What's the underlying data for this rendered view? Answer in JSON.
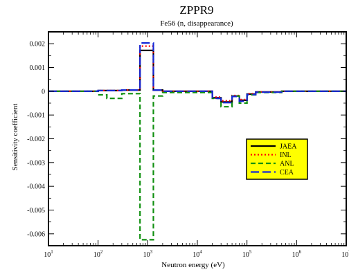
{
  "chart_data": {
    "type": "line",
    "title": "ZPPR9",
    "subtitle": "Fe56 (n, disappearance)",
    "xlabel": "Neutron energy (eV)",
    "ylabel": "Sensitivity coefficient",
    "x_scale": "log",
    "xlim": [
      10,
      10000000
    ],
    "ylim": [
      -0.0065,
      0.0025
    ],
    "x_ticks": [
      {
        "base": "10",
        "exp": "1",
        "value": 10
      },
      {
        "base": "10",
        "exp": "2",
        "value": 100
      },
      {
        "base": "10",
        "exp": "3",
        "value": 1000
      },
      {
        "base": "10",
        "exp": "4",
        "value": 10000
      },
      {
        "base": "10",
        "exp": "5",
        "value": 100000
      },
      {
        "base": "10",
        "exp": "6",
        "value": 1000000
      },
      {
        "base": "10",
        "exp": "7",
        "value": 10000000
      }
    ],
    "y_ticks": [
      {
        "label": "0.002",
        "value": 0.002
      },
      {
        "label": "0.001",
        "value": 0.001
      },
      {
        "label": "0",
        "value": 0
      },
      {
        "label": "-0.001",
        "value": -0.001
      },
      {
        "label": "-0.002",
        "value": -0.002
      },
      {
        "label": "-0.003",
        "value": -0.003
      },
      {
        "label": "-0.004",
        "value": -0.004
      },
      {
        "label": "-0.005",
        "value": -0.005
      },
      {
        "label": "-0.006",
        "value": -0.006
      }
    ],
    "legend_position": "center-right",
    "legend_background": "#ffff00",
    "series": [
      {
        "name": "JAEA",
        "color": "#000000",
        "dash": "solid",
        "width": 2.2,
        "x": [
          10,
          100,
          100,
          300,
          300,
          700,
          700,
          1300,
          1300,
          2000,
          2000,
          20000,
          20000,
          30000,
          30000,
          50000,
          50000,
          70000,
          70000,
          100000,
          100000,
          150000,
          150000,
          500000,
          500000,
          10000000
        ],
        "y": [
          0,
          0,
          3e-05,
          3e-05,
          5e-05,
          5e-05,
          0.00172,
          0.00172,
          5e-05,
          5e-05,
          0,
          0,
          -0.00028,
          -0.00028,
          -0.00045,
          -0.00045,
          -0.0002,
          -0.0002,
          -0.00038,
          -0.00038,
          -0.00012,
          -0.00012,
          -3e-05,
          -3e-05,
          0,
          0
        ]
      },
      {
        "name": "INL",
        "color": "#ff0000",
        "dash": "dotted",
        "width": 2.2,
        "x": [
          10,
          100,
          100,
          300,
          300,
          700,
          700,
          1300,
          1300,
          2000,
          2000,
          20000,
          20000,
          30000,
          30000,
          50000,
          50000,
          70000,
          70000,
          100000,
          100000,
          150000,
          150000,
          500000,
          500000,
          10000000
        ],
        "y": [
          0,
          0,
          3e-05,
          3e-05,
          5e-05,
          5e-05,
          0.0019,
          0.0019,
          5e-05,
          5e-05,
          0,
          0,
          -0.00025,
          -0.00025,
          -0.0004,
          -0.0004,
          -0.00018,
          -0.00018,
          -0.00035,
          -0.00035,
          -0.0001,
          -0.0001,
          -3e-05,
          -3e-05,
          0,
          0
        ]
      },
      {
        "name": "ANL",
        "color": "#109010",
        "dash": "dashed",
        "width": 2.2,
        "x": [
          10,
          100,
          100,
          150,
          150,
          300,
          300,
          700,
          700,
          1300,
          1300,
          2000,
          2000,
          20000,
          20000,
          30000,
          30000,
          50000,
          50000,
          70000,
          70000,
          100000,
          100000,
          150000,
          150000,
          500000,
          500000,
          10000000
        ],
        "y": [
          0,
          0,
          -0.00015,
          -0.00015,
          -0.0003,
          -0.0003,
          -0.0001,
          -0.0001,
          -0.00625,
          -0.00625,
          -0.0002,
          -0.0002,
          -5e-05,
          -5e-05,
          -0.0003,
          -0.0003,
          -0.00065,
          -0.00065,
          -0.0002,
          -0.0002,
          -0.0005,
          -0.0005,
          -0.00015,
          -0.00015,
          -5e-05,
          -5e-05,
          0,
          0
        ]
      },
      {
        "name": "CEA",
        "color": "#1428d8",
        "dash": "longdash",
        "width": 2.2,
        "x": [
          10,
          100,
          100,
          300,
          300,
          700,
          700,
          1300,
          1300,
          2000,
          2000,
          20000,
          20000,
          30000,
          30000,
          50000,
          50000,
          70000,
          70000,
          100000,
          100000,
          150000,
          150000,
          500000,
          500000,
          10000000
        ],
        "y": [
          0,
          0,
          3e-05,
          3e-05,
          5e-05,
          5e-05,
          0.00203,
          0.00203,
          5e-05,
          5e-05,
          0,
          0,
          -0.0003,
          -0.0003,
          -0.00048,
          -0.00048,
          -0.00022,
          -0.00022,
          -0.00042,
          -0.00042,
          -0.00014,
          -0.00014,
          -4e-05,
          -4e-05,
          0,
          0
        ]
      }
    ]
  }
}
